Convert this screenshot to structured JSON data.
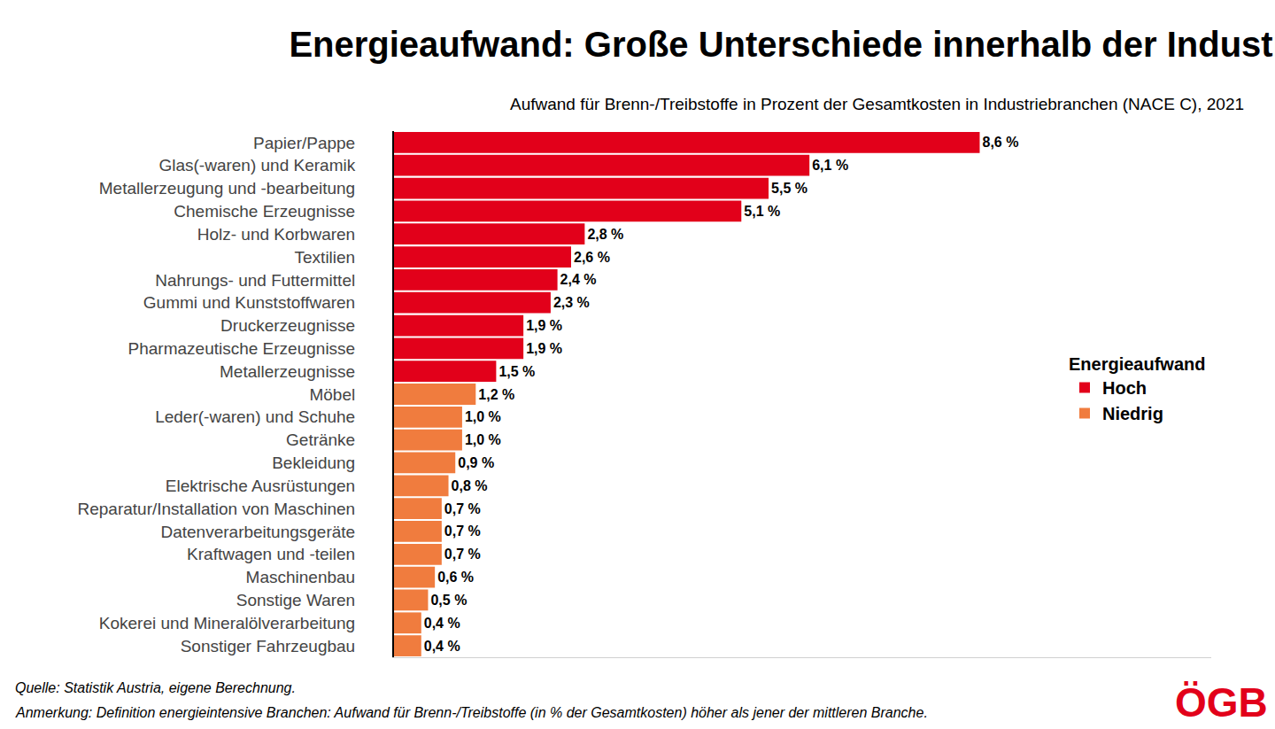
{
  "chart_data": {
    "type": "bar",
    "title": "Energieaufwand: Große Unterschiede innerhalb der Industrie",
    "subtitle": "Aufwand für Brenn-/Treibstoffe in Prozent der Gesamtkosten in Industriebranchen (NACE C), 2021",
    "orientation": "horizontal",
    "categories": [
      "Papier/Pappe",
      "Glas(-waren) und Keramik",
      "Metallerzeugung und -bearbeitung",
      "Chemische Erzeugnisse",
      "Holz- und Korbwaren",
      "Textilien",
      "Nahrungs- und Futtermittel",
      "Gummi und Kunststoffwaren",
      "Druckerzeugnisse",
      "Pharmazeutische Erzeugnisse",
      "Metallerzeugnisse",
      "Möbel",
      "Leder(-waren) und Schuhe",
      "Getränke",
      "Bekleidung",
      "Elektrische Ausrüstungen",
      "Reparatur/Installation von Maschinen",
      "Datenverarbeitungsgeräte",
      "Kraftwagen und -teilen",
      "Maschinenbau",
      "Sonstige Waren",
      "Kokerei und Mineralölverarbeitung",
      "Sonstiger Fahrzeugbau"
    ],
    "series": [
      {
        "name": "Hoch",
        "color": "#e2001a",
        "values": [
          8.6,
          6.1,
          5.5,
          5.1,
          2.8,
          2.6,
          2.4,
          2.3,
          1.9,
          1.9,
          1.5,
          null,
          null,
          null,
          null,
          null,
          null,
          null,
          null,
          null,
          null,
          null,
          null
        ],
        "value_labels": [
          "8,6 %",
          "6,1 %",
          "5,5 %",
          "5,1 %",
          "2,8 %",
          "2,6 %",
          "2,4 %",
          "2,3 %",
          "1,9 %",
          "1,9 %",
          "1,5 %",
          null,
          null,
          null,
          null,
          null,
          null,
          null,
          null,
          null,
          null,
          null,
          null
        ]
      },
      {
        "name": "Niedrig",
        "color": "#f07c3e",
        "values": [
          null,
          null,
          null,
          null,
          null,
          null,
          null,
          null,
          null,
          null,
          null,
          1.2,
          1.0,
          1.0,
          0.9,
          0.8,
          0.7,
          0.7,
          0.7,
          0.6,
          0.5,
          0.4,
          0.4
        ],
        "value_labels": [
          null,
          null,
          null,
          null,
          null,
          null,
          null,
          null,
          null,
          null,
          null,
          "1,2 %",
          "1,0 %",
          "1,0 %",
          "0,9 %",
          "0,8 %",
          "0,7 %",
          "0,7 %",
          "0,7 %",
          "0,6 %",
          "0,5 %",
          "0,4 %",
          "0,4 %"
        ]
      }
    ],
    "legend_title": "Energieaufwand",
    "legend": "right",
    "xlim": [
      0,
      12
    ],
    "tick_labels": "y",
    "grid": false,
    "data_labels": true,
    "annotations": [
      "Quelle: Statistik Austria, eigene Berechnung.",
      "Anmerkung: Definition energieintensive Branchen: Aufwand für Brenn-/Treibstoffe (in % der Gesamtkosten) höher als jener der mittleren Branche."
    ],
    "logo": "ÖGB"
  }
}
